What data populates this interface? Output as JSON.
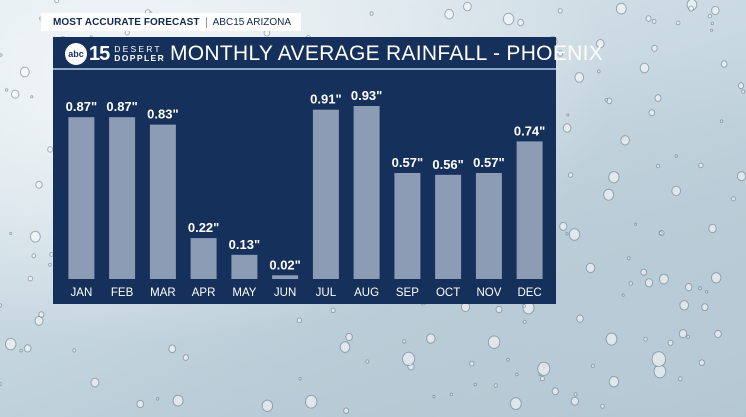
{
  "banner": {
    "label": "MOST ACCURATE FORECAST",
    "station": "ABC15 ARIZONA"
  },
  "logo": {
    "network": "abc",
    "number": "15",
    "line1": "DESERT",
    "line2": "DOPPLER"
  },
  "colors": {
    "panel": "#15305a",
    "bar": "#8d9cb5",
    "text": "#ffffff"
  },
  "chart_data": {
    "type": "bar",
    "title": "MONTHLY AVERAGE RAINFALL - PHOENIX",
    "categories": [
      "JAN",
      "FEB",
      "MAR",
      "APR",
      "MAY",
      "JUN",
      "JUL",
      "AUG",
      "SEP",
      "OCT",
      "NOV",
      "DEC"
    ],
    "values": [
      0.87,
      0.87,
      0.83,
      0.22,
      0.13,
      0.02,
      0.91,
      0.93,
      0.57,
      0.56,
      0.57,
      0.74
    ],
    "labels": [
      "0.87\"",
      "0.87\"",
      "0.83\"",
      "0.22\"",
      "0.13\"",
      "0.02\"",
      "0.91\"",
      "0.93\"",
      "0.57\"",
      "0.56\"",
      "0.57\"",
      "0.74\""
    ],
    "ylim": [
      0,
      1.0
    ],
    "grid": false,
    "legend": "none"
  }
}
